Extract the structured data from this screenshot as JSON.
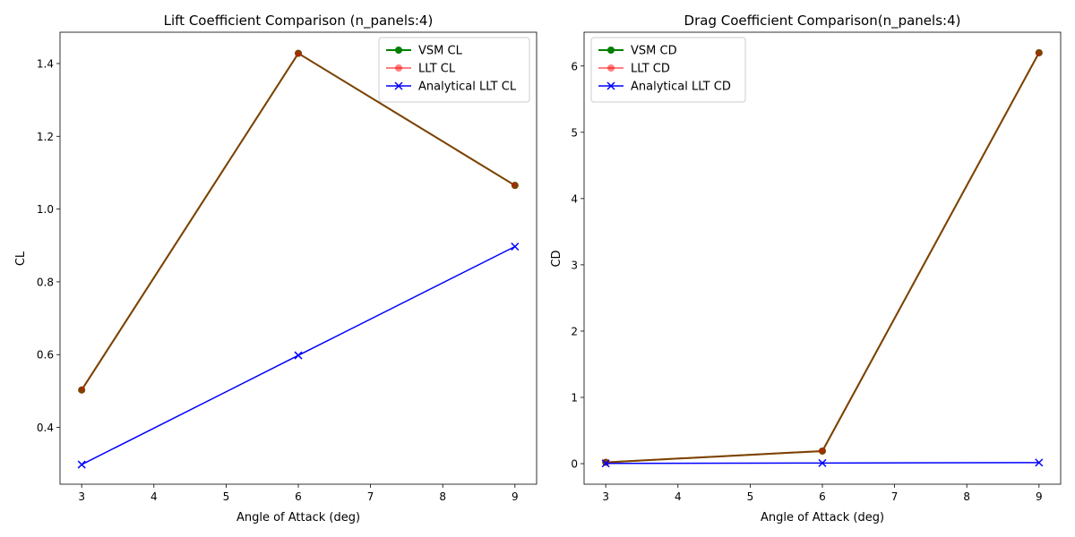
{
  "chart_data": [
    {
      "type": "line",
      "title": "Lift Coefficient Comparison (n_panels:4)",
      "xlabel": "Angle of Attack (deg)",
      "ylabel": "CL",
      "x": [
        3,
        6,
        9
      ],
      "xlim": [
        2.7,
        9.3
      ],
      "ylim": [
        0.244,
        1.486
      ],
      "xticks": [
        3,
        4,
        5,
        6,
        7,
        8,
        9
      ],
      "xtick_labels": [
        "3",
        "4",
        "5",
        "6",
        "7",
        "8",
        "9"
      ],
      "yticks": [
        0.4,
        0.6,
        0.8,
        1.0,
        1.2,
        1.4
      ],
      "ytick_labels": [
        "0.4",
        "0.6",
        "0.8",
        "1.0",
        "1.2",
        "1.4"
      ],
      "legend_position": "top-right",
      "series": [
        {
          "name": "VSM CL",
          "values": [
            0.503,
            1.428,
            1.065
          ],
          "color": "#008000",
          "marker": "circle"
        },
        {
          "name": "LLT CL",
          "values": [
            0.503,
            1.428,
            1.065
          ],
          "color": "#ff0000",
          "marker": "circle",
          "alpha": 0.5
        },
        {
          "name": "Analytical LLT CL",
          "values": [
            0.298,
            0.598,
            0.897
          ],
          "color": "#0000ff",
          "marker": "x"
        }
      ]
    },
    {
      "type": "line",
      "title": "Drag Coefficient Comparison(n_panels:4)",
      "xlabel": "Angle of Attack (deg)",
      "ylabel": "CD",
      "x": [
        3,
        6,
        9
      ],
      "xlim": [
        2.7,
        9.3
      ],
      "ylim": [
        -0.31,
        6.51
      ],
      "xticks": [
        3,
        4,
        5,
        6,
        7,
        8,
        9
      ],
      "xtick_labels": [
        "3",
        "4",
        "5",
        "6",
        "7",
        "8",
        "9"
      ],
      "yticks": [
        0,
        1,
        2,
        3,
        4,
        5,
        6
      ],
      "ytick_labels": [
        "0",
        "1",
        "2",
        "3",
        "4",
        "5",
        "6"
      ],
      "legend_position": "top-left",
      "series": [
        {
          "name": "VSM CD",
          "values": [
            0.02,
            0.19,
            6.2
          ],
          "color": "#008000",
          "marker": "circle"
        },
        {
          "name": "LLT CD",
          "values": [
            0.02,
            0.19,
            6.2
          ],
          "color": "#ff0000",
          "marker": "circle",
          "alpha": 0.5
        },
        {
          "name": "Analytical LLT CD",
          "values": [
            0.004,
            0.009,
            0.016
          ],
          "color": "#0000ff",
          "marker": "x"
        }
      ]
    }
  ]
}
